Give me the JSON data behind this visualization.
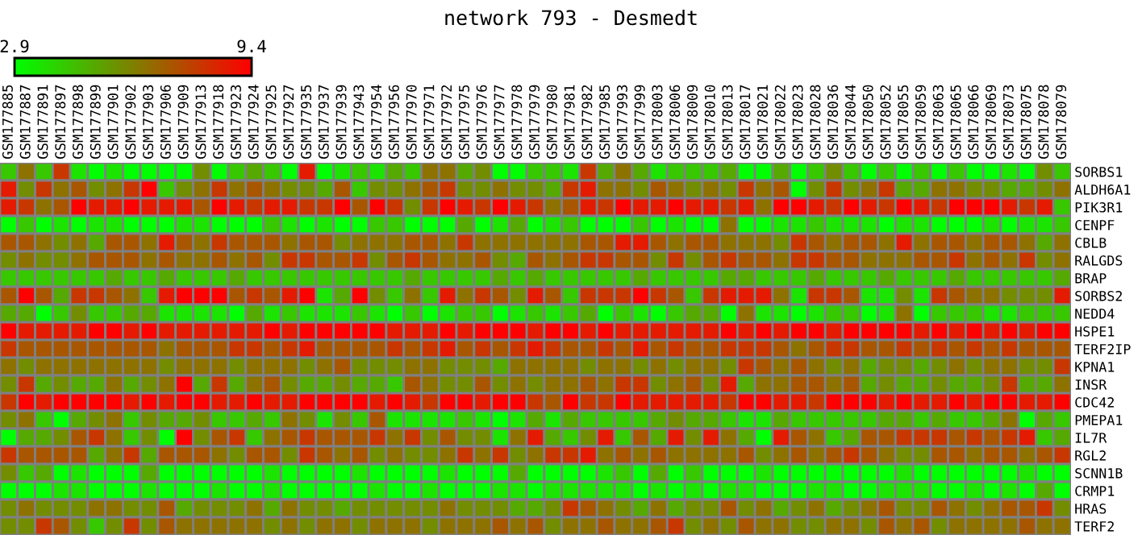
{
  "chart_data": {
    "type": "heatmap",
    "title": "network 793 - Desmedt",
    "categories": [
      "GSM177885",
      "GSM177887",
      "GSM177891",
      "GSM177897",
      "GSM177898",
      "GSM177899",
      "GSM177901",
      "GSM177902",
      "GSM177903",
      "GSM177906",
      "GSM177909",
      "GSM177913",
      "GSM177918",
      "GSM177923",
      "GSM177924",
      "GSM177925",
      "GSM177927",
      "GSM177935",
      "GSM177937",
      "GSM177939",
      "GSM177943",
      "GSM177954",
      "GSM177956",
      "GSM177970",
      "GSM177971",
      "GSM177972",
      "GSM177975",
      "GSM177976",
      "GSM177977",
      "GSM177978",
      "GSM177979",
      "GSM177980",
      "GSM177981",
      "GSM177982",
      "GSM177985",
      "GSM177993",
      "GSM177999",
      "GSM178003",
      "GSM178006",
      "GSM178009",
      "GSM178010",
      "GSM178013",
      "GSM178017",
      "GSM178021",
      "GSM178022",
      "GSM178023",
      "GSM178028",
      "GSM178036",
      "GSM178044",
      "GSM178050",
      "GSM178052",
      "GSM178055",
      "GSM178059",
      "GSM178063",
      "GSM178065",
      "GSM178066",
      "GSM178069",
      "GSM178073",
      "GSM178075",
      "GSM178078",
      "GSM178079"
    ],
    "y_categories": [
      "SORBS1",
      "ALDH6A1",
      "PIK3R1",
      "CENPF",
      "CBLB",
      "RALGDS",
      "BRAP",
      "SORBS2",
      "NEDD4",
      "HSPE1",
      "TERF2IP",
      "KPNA1",
      "INSR",
      "CDC42",
      "PMEPA1",
      "IL7R",
      "RGL2",
      "SCNN1B",
      "CRMP1",
      "HRAS",
      "TERF2"
    ],
    "clim": [
      2.9,
      9.4
    ],
    "cticks": [
      2.9,
      9.4
    ],
    "cells": [
      [
        4.3,
        6.5,
        4.3,
        8.0,
        3.6,
        2.9,
        3.6,
        2.9,
        2.9,
        2.9,
        2.9,
        5.8,
        2.9,
        4.3,
        5.1,
        4.3,
        2.9,
        8.7,
        2.9,
        3.6,
        4.3,
        3.6,
        5.1,
        4.3,
        6.5,
        6.5,
        5.1,
        5.8,
        2.9,
        2.9,
        4.3,
        4.3,
        3.6,
        8.0,
        5.1,
        6.5,
        5.1,
        3.6,
        4.3,
        4.3,
        4.3,
        5.1,
        2.9,
        2.9,
        5.1,
        2.9,
        4.3,
        5.8,
        4.3,
        2.9,
        4.3,
        2.9,
        4.3,
        2.9,
        4.3,
        2.9,
        2.9,
        3.6,
        2.9,
        5.8,
        4.3
      ],
      [
        8.7,
        5.8,
        8.0,
        6.5,
        7.2,
        5.8,
        6.5,
        8.0,
        9.4,
        4.3,
        5.8,
        6.5,
        8.0,
        6.5,
        7.2,
        6.5,
        5.8,
        5.8,
        5.1,
        7.2,
        4.3,
        5.8,
        5.8,
        6.5,
        7.2,
        8.0,
        5.8,
        5.8,
        6.5,
        5.8,
        5.8,
        5.1,
        8.0,
        8.7,
        6.5,
        6.5,
        5.8,
        7.2,
        6.5,
        5.8,
        6.5,
        5.8,
        8.0,
        6.5,
        7.2,
        2.9,
        5.8,
        8.0,
        5.8,
        6.5,
        8.0,
        5.1,
        5.1,
        6.5,
        6.5,
        5.8,
        5.8,
        5.1,
        5.1,
        5.8,
        6.5
      ],
      [
        8.7,
        8.0,
        6.5,
        7.2,
        9.4,
        8.7,
        8.7,
        9.4,
        8.7,
        8.7,
        8.7,
        7.2,
        9.4,
        8.7,
        8.0,
        8.7,
        8.7,
        8.0,
        8.0,
        9.4,
        7.2,
        9.4,
        8.0,
        5.8,
        8.0,
        9.4,
        8.7,
        8.0,
        9.4,
        8.7,
        8.0,
        6.5,
        7.2,
        8.7,
        8.0,
        9.4,
        8.7,
        8.7,
        9.4,
        8.7,
        8.7,
        8.0,
        8.7,
        6.5,
        9.4,
        9.4,
        8.7,
        8.0,
        9.4,
        8.7,
        8.0,
        9.4,
        8.7,
        8.0,
        9.4,
        9.4,
        9.4,
        8.7,
        8.0,
        8.7,
        4.3
      ],
      [
        2.9,
        4.3,
        2.9,
        3.6,
        2.9,
        3.6,
        3.6,
        2.9,
        2.9,
        2.9,
        3.6,
        3.6,
        2.9,
        2.9,
        2.9,
        4.3,
        3.6,
        2.9,
        3.6,
        2.9,
        2.9,
        4.3,
        4.3,
        2.9,
        2.9,
        2.9,
        5.1,
        2.9,
        3.6,
        5.1,
        2.9,
        3.6,
        4.3,
        2.9,
        2.9,
        2.9,
        4.3,
        2.9,
        3.6,
        2.9,
        2.9,
        6.5,
        2.9,
        2.9,
        3.6,
        3.6,
        4.3,
        3.6,
        3.6,
        3.6,
        2.9,
        3.6,
        3.6,
        2.9,
        2.9,
        2.9,
        3.6,
        2.9,
        3.6,
        3.6,
        4.3
      ],
      [
        7.2,
        7.2,
        6.5,
        5.8,
        6.5,
        5.1,
        7.2,
        7.2,
        6.5,
        8.7,
        7.2,
        6.5,
        8.0,
        7.2,
        7.2,
        7.2,
        6.5,
        7.2,
        7.2,
        5.8,
        6.5,
        6.5,
        6.5,
        7.2,
        7.2,
        6.5,
        8.0,
        6.5,
        6.5,
        6.5,
        6.5,
        6.5,
        6.5,
        7.2,
        7.2,
        8.7,
        8.7,
        7.2,
        6.5,
        7.2,
        7.2,
        6.5,
        6.5,
        6.5,
        5.8,
        8.0,
        7.2,
        6.5,
        7.2,
        7.2,
        6.5,
        8.7,
        6.5,
        7.2,
        7.2,
        6.5,
        7.2,
        7.2,
        6.5,
        5.1,
        6.5
      ],
      [
        5.8,
        6.5,
        5.8,
        5.8,
        6.5,
        7.2,
        7.2,
        7.2,
        6.5,
        7.2,
        6.5,
        6.5,
        7.2,
        6.5,
        7.2,
        5.8,
        8.0,
        8.0,
        7.2,
        7.2,
        8.0,
        5.8,
        7.2,
        8.0,
        7.2,
        6.5,
        6.5,
        7.2,
        5.8,
        5.1,
        7.2,
        6.5,
        7.2,
        8.0,
        8.0,
        7.2,
        7.2,
        5.8,
        8.0,
        5.8,
        7.2,
        8.0,
        7.2,
        7.2,
        6.5,
        8.0,
        8.0,
        7.2,
        7.2,
        6.5,
        6.5,
        6.5,
        7.2,
        7.2,
        8.0,
        6.5,
        7.2,
        6.5,
        8.0,
        5.8,
        6.5
      ],
      [
        4.3,
        4.3,
        4.3,
        4.3,
        4.3,
        4.3,
        5.1,
        4.3,
        4.3,
        5.1,
        4.3,
        4.3,
        4.3,
        5.1,
        4.3,
        4.3,
        4.3,
        4.3,
        4.3,
        4.3,
        4.3,
        4.3,
        4.3,
        5.1,
        4.3,
        4.3,
        4.3,
        4.3,
        5.1,
        4.3,
        5.1,
        4.3,
        4.3,
        4.3,
        4.3,
        4.3,
        5.1,
        4.3,
        4.3,
        4.3,
        4.3,
        5.1,
        5.1,
        4.3,
        4.3,
        4.3,
        5.1,
        4.3,
        4.3,
        4.3,
        5.1,
        4.3,
        4.3,
        4.3,
        5.1,
        4.3,
        4.3,
        4.3,
        4.3,
        4.3,
        5.1
      ],
      [
        7.2,
        9.4,
        7.2,
        5.1,
        8.0,
        8.0,
        7.2,
        6.5,
        4.3,
        8.7,
        9.4,
        9.4,
        9.4,
        7.2,
        8.0,
        7.2,
        8.7,
        9.4,
        3.6,
        5.1,
        9.4,
        5.8,
        4.3,
        6.5,
        4.3,
        8.7,
        6.5,
        8.0,
        7.2,
        5.8,
        8.7,
        7.2,
        4.3,
        8.0,
        8.0,
        8.0,
        9.4,
        8.0,
        7.2,
        4.3,
        8.0,
        8.7,
        8.7,
        8.7,
        6.5,
        3.6,
        8.0,
        8.0,
        7.2,
        3.6,
        3.6,
        5.8,
        3.6,
        8.0,
        7.2,
        6.5,
        6.5,
        5.8,
        5.8,
        5.8,
        8.7
      ],
      [
        5.1,
        5.1,
        2.9,
        4.3,
        5.8,
        4.3,
        4.3,
        5.1,
        5.1,
        3.6,
        3.6,
        3.6,
        3.6,
        2.9,
        5.1,
        3.6,
        4.3,
        3.6,
        3.6,
        3.6,
        4.3,
        3.6,
        2.9,
        4.3,
        2.9,
        3.6,
        4.3,
        4.3,
        2.9,
        3.6,
        4.3,
        3.6,
        4.3,
        5.1,
        2.9,
        4.3,
        3.6,
        2.9,
        4.3,
        5.1,
        5.1,
        2.9,
        6.5,
        3.6,
        3.6,
        2.9,
        3.6,
        4.3,
        4.3,
        2.9,
        3.6,
        6.5,
        2.9,
        4.3,
        4.3,
        4.3,
        3.6,
        3.6,
        4.3,
        4.3,
        4.3
      ],
      [
        9.4,
        8.7,
        8.7,
        8.7,
        8.7,
        9.4,
        9.4,
        8.7,
        9.4,
        8.7,
        8.7,
        8.7,
        8.7,
        8.7,
        8.7,
        9.4,
        8.7,
        9.4,
        9.4,
        9.4,
        9.4,
        9.4,
        8.7,
        8.7,
        8.7,
        9.4,
        8.7,
        9.4,
        9.4,
        9.4,
        8.7,
        9.4,
        9.4,
        8.7,
        9.4,
        8.7,
        8.7,
        8.7,
        8.7,
        8.7,
        8.7,
        9.4,
        8.7,
        9.4,
        8.7,
        9.4,
        9.4,
        8.7,
        9.4,
        9.4,
        9.4,
        9.4,
        8.7,
        9.4,
        8.7,
        9.4,
        8.7,
        9.4,
        8.7,
        9.4,
        9.4
      ],
      [
        8.0,
        7.2,
        7.2,
        7.2,
        7.2,
        7.2,
        7.2,
        7.2,
        7.2,
        6.5,
        7.2,
        7.2,
        7.2,
        8.0,
        8.0,
        7.2,
        8.0,
        8.7,
        7.2,
        7.2,
        7.2,
        7.2,
        8.0,
        7.2,
        8.0,
        8.7,
        7.2,
        8.0,
        7.2,
        8.0,
        8.7,
        8.0,
        7.2,
        7.2,
        8.0,
        7.2,
        8.7,
        7.2,
        8.0,
        7.2,
        7.2,
        8.0,
        8.0,
        8.0,
        7.2,
        6.5,
        7.2,
        8.0,
        8.0,
        7.2,
        7.2,
        8.0,
        7.2,
        8.0,
        7.2,
        8.0,
        7.2,
        8.0,
        7.2,
        7.2,
        7.2
      ],
      [
        6.5,
        5.8,
        6.5,
        6.5,
        6.5,
        6.5,
        6.5,
        6.5,
        6.5,
        5.8,
        6.5,
        6.5,
        6.5,
        5.8,
        6.5,
        6.5,
        6.5,
        5.8,
        6.5,
        7.2,
        5.8,
        5.8,
        5.8,
        6.5,
        6.5,
        5.8,
        5.8,
        5.8,
        5.1,
        6.5,
        6.5,
        6.5,
        6.5,
        5.8,
        6.5,
        6.5,
        5.8,
        6.5,
        5.8,
        6.5,
        6.5,
        5.8,
        8.0,
        7.2,
        6.5,
        7.2,
        6.5,
        5.8,
        6.5,
        5.1,
        5.8,
        5.8,
        5.1,
        5.8,
        6.5,
        5.8,
        6.5,
        6.5,
        5.8,
        5.8,
        8.0
      ],
      [
        5.8,
        8.0,
        5.1,
        5.8,
        5.1,
        5.1,
        6.5,
        5.1,
        5.8,
        6.5,
        9.4,
        5.1,
        8.0,
        5.1,
        6.5,
        7.2,
        5.8,
        5.1,
        5.1,
        5.8,
        5.1,
        5.1,
        4.3,
        7.2,
        6.5,
        5.8,
        5.8,
        7.2,
        5.8,
        6.5,
        5.8,
        6.5,
        6.5,
        7.2,
        6.5,
        8.0,
        8.0,
        5.8,
        6.5,
        7.2,
        5.8,
        8.7,
        5.1,
        6.5,
        6.5,
        7.2,
        7.2,
        6.5,
        7.2,
        5.1,
        5.8,
        5.1,
        5.1,
        5.8,
        5.1,
        5.1,
        5.8,
        8.0,
        5.1,
        5.1,
        6.5
      ],
      [
        8.0,
        9.4,
        8.7,
        9.4,
        9.4,
        9.4,
        9.4,
        8.7,
        9.4,
        8.7,
        9.4,
        9.4,
        8.7,
        8.7,
        9.4,
        8.7,
        8.7,
        9.4,
        9.4,
        9.4,
        9.4,
        8.7,
        9.4,
        8.7,
        8.0,
        9.4,
        9.4,
        8.7,
        9.4,
        9.4,
        8.0,
        7.2,
        9.4,
        8.0,
        8.0,
        9.4,
        8.7,
        8.7,
        8.7,
        8.7,
        8.7,
        8.0,
        9.4,
        9.4,
        8.7,
        8.7,
        8.0,
        9.4,
        9.4,
        9.4,
        8.7,
        9.4,
        8.7,
        8.7,
        9.4,
        8.7,
        9.4,
        9.4,
        8.7,
        8.7,
        9.4
      ],
      [
        5.8,
        6.5,
        4.3,
        2.9,
        5.1,
        5.8,
        6.5,
        4.3,
        5.8,
        5.1,
        5.1,
        5.8,
        4.3,
        4.3,
        5.1,
        4.3,
        6.5,
        5.8,
        3.6,
        5.8,
        4.3,
        7.2,
        3.6,
        3.6,
        3.6,
        3.6,
        4.3,
        3.6,
        2.9,
        3.6,
        5.1,
        3.6,
        5.1,
        4.3,
        4.3,
        4.3,
        4.3,
        5.1,
        5.8,
        5.1,
        5.1,
        4.3,
        3.6,
        3.6,
        5.1,
        4.3,
        4.3,
        4.3,
        4.3,
        4.3,
        5.1,
        5.1,
        4.3,
        5.1,
        4.3,
        4.3,
        5.1,
        6.5,
        2.9,
        5.1,
        4.3
      ],
      [
        2.9,
        5.1,
        5.1,
        5.8,
        7.2,
        8.0,
        6.5,
        4.3,
        5.8,
        2.9,
        9.4,
        5.8,
        7.2,
        8.0,
        4.3,
        6.5,
        7.2,
        8.0,
        7.2,
        7.2,
        7.2,
        8.0,
        6.5,
        8.0,
        5.8,
        7.2,
        5.8,
        5.8,
        3.6,
        6.5,
        8.7,
        5.1,
        4.3,
        5.8,
        8.7,
        4.3,
        7.2,
        5.1,
        8.7,
        5.8,
        8.7,
        6.5,
        5.1,
        2.9,
        8.7,
        7.2,
        6.5,
        4.3,
        5.1,
        7.2,
        7.2,
        8.0,
        8.0,
        8.0,
        7.2,
        8.0,
        7.2,
        8.0,
        8.7,
        4.3,
        5.1
      ],
      [
        8.0,
        7.2,
        7.2,
        7.2,
        7.2,
        5.1,
        6.5,
        8.0,
        5.1,
        7.2,
        7.2,
        7.2,
        6.5,
        5.8,
        7.2,
        7.2,
        5.8,
        8.0,
        7.2,
        6.5,
        7.2,
        5.8,
        6.5,
        5.8,
        5.8,
        6.5,
        8.0,
        6.5,
        8.0,
        5.8,
        6.5,
        8.0,
        8.0,
        8.7,
        6.5,
        7.2,
        6.5,
        7.2,
        6.5,
        6.5,
        6.5,
        6.5,
        7.2,
        5.8,
        6.5,
        7.2,
        6.5,
        7.2,
        8.0,
        7.2,
        6.5,
        5.8,
        5.8,
        7.2,
        7.2,
        6.5,
        7.2,
        7.2,
        6.5,
        7.2,
        8.0
      ],
      [
        5.8,
        4.3,
        5.1,
        2.9,
        3.6,
        2.9,
        2.9,
        2.9,
        5.1,
        2.9,
        2.9,
        2.9,
        2.9,
        2.9,
        2.9,
        3.6,
        2.9,
        2.9,
        2.9,
        2.9,
        3.6,
        2.9,
        2.9,
        2.9,
        2.9,
        3.6,
        2.9,
        2.9,
        2.9,
        5.1,
        2.9,
        2.9,
        2.9,
        2.9,
        3.6,
        4.3,
        2.9,
        5.1,
        2.9,
        4.3,
        2.9,
        2.9,
        2.9,
        3.6,
        2.9,
        2.9,
        2.9,
        2.9,
        2.9,
        2.9,
        2.9,
        3.6,
        2.9,
        2.9,
        2.9,
        2.9,
        2.9,
        2.9,
        3.6,
        2.9,
        2.9
      ],
      [
        2.9,
        2.9,
        2.9,
        3.6,
        3.6,
        2.9,
        2.9,
        2.9,
        3.6,
        2.9,
        2.9,
        2.9,
        3.6,
        2.9,
        2.9,
        3.6,
        2.9,
        2.9,
        2.9,
        2.9,
        2.9,
        3.6,
        2.9,
        2.9,
        3.6,
        2.9,
        2.9,
        2.9,
        3.6,
        3.6,
        2.9,
        3.6,
        3.6,
        3.6,
        3.6,
        3.6,
        2.9,
        3.6,
        2.9,
        3.6,
        2.9,
        3.6,
        3.6,
        2.9,
        2.9,
        2.9,
        3.6,
        3.6,
        2.9,
        2.9,
        3.6,
        3.6,
        3.6,
        2.9,
        2.9,
        3.6,
        2.9,
        3.6,
        2.9,
        5.1,
        2.9
      ],
      [
        5.8,
        6.5,
        5.8,
        5.8,
        5.8,
        6.5,
        6.5,
        5.8,
        5.8,
        7.2,
        5.1,
        5.8,
        5.8,
        5.8,
        6.5,
        5.1,
        6.5,
        5.8,
        5.8,
        5.1,
        5.8,
        5.8,
        5.8,
        5.8,
        5.8,
        6.5,
        5.8,
        5.8,
        5.8,
        5.1,
        5.1,
        5.8,
        8.0,
        7.2,
        6.5,
        5.8,
        5.1,
        6.5,
        5.1,
        5.8,
        5.8,
        7.2,
        5.8,
        6.5,
        5.1,
        5.8,
        6.5,
        5.1,
        5.8,
        6.5,
        7.2,
        5.8,
        5.8,
        7.2,
        6.5,
        5.8,
        6.5,
        7.2,
        7.2,
        8.0,
        5.8
      ],
      [
        5.8,
        5.8,
        8.0,
        7.2,
        5.8,
        4.3,
        5.8,
        8.0,
        5.8,
        7.2,
        6.5,
        6.5,
        6.5,
        6.5,
        6.5,
        5.8,
        6.5,
        5.8,
        6.5,
        6.5,
        5.8,
        6.5,
        6.5,
        6.5,
        5.8,
        6.5,
        6.5,
        6.5,
        7.2,
        6.5,
        7.2,
        5.8,
        6.5,
        6.5,
        7.2,
        6.5,
        6.5,
        7.2,
        8.0,
        5.8,
        6.5,
        5.8,
        7.2,
        6.5,
        6.5,
        5.8,
        5.8,
        6.5,
        6.5,
        5.8,
        7.2,
        6.5,
        7.2,
        5.8,
        6.5,
        6.5,
        6.5,
        6.5,
        7.2,
        6.5,
        6.5
      ]
    ]
  }
}
